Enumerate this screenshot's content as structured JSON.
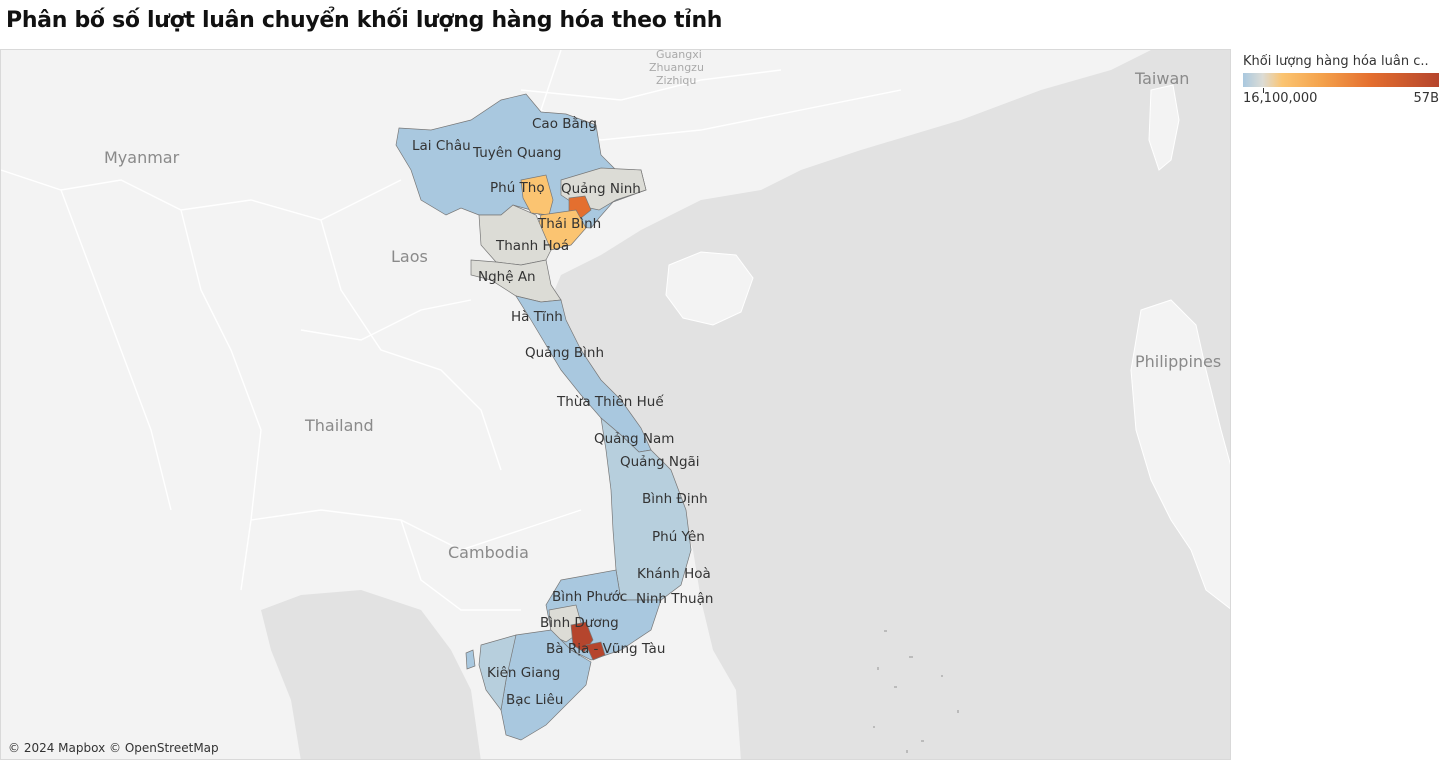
{
  "title": "Phân bố số lượt luân chuyển khối lượng hàng hóa theo tỉnh",
  "legend": {
    "title": "Khối lượng hàng hóa luân c..",
    "min_label": "16,100,000",
    "max_label": "57B",
    "colors": [
      "#a9c8df",
      "#dcdcd6",
      "#fbc471",
      "#e46f2f",
      "#b5452d"
    ]
  },
  "map_labels": {
    "countries": [
      "Myanmar",
      "Laos",
      "Thailand",
      "Cambodia",
      "Taiwan",
      "Philippines"
    ],
    "cities": [
      "Guangxi",
      "Zhuangzu",
      "Zizhiqu"
    ]
  },
  "provinces": [
    "Cao Bằng",
    "Lai Châu",
    "Tuyên Quang",
    "Phú Thọ",
    "Quảng Ninh",
    "Thái Bình",
    "Thanh Hoá",
    "Nghệ An",
    "Hà Tĩnh",
    "Quảng Bình",
    "Thừa Thiên Huế",
    "Quảng Nam",
    "Quảng Ngãi",
    "Bình Định",
    "Phú Yên",
    "Khánh Hoà",
    "Bình Phước",
    "Ninh Thuận",
    "Bình Dương",
    "Bà Rịa - Vũng Tàu",
    "Kiên Giang",
    "Bạc Liêu"
  ],
  "attribution": "© 2024 Mapbox © OpenStreetMap"
}
